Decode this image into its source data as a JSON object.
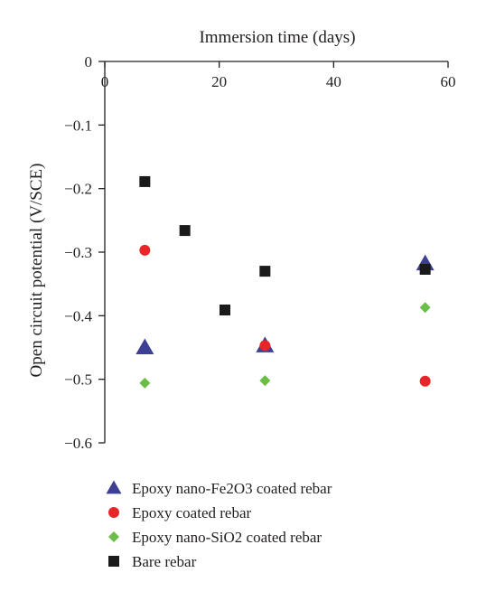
{
  "chart_data": {
    "type": "scatter",
    "xlabel": "Immersion time (days)",
    "ylabel": "Open circuit potential (V/SCE)",
    "xlim": [
      0,
      60
    ],
    "ylim": [
      -0.6,
      0
    ],
    "xticks": [
      "0",
      "20",
      "40",
      "60"
    ],
    "yticks": [
      "0",
      "−0.1",
      "−0.2",
      "−0.3",
      "−0.4",
      "−0.5",
      "−0.6"
    ],
    "x_axis_position": "top",
    "grid": false,
    "legend_position": "below",
    "series": [
      {
        "name": "Epoxy nano-Fe2O3 coated rebar",
        "marker": "triangle",
        "color": "#3d3f94",
        "points": [
          {
            "x": 7,
            "y": -0.45
          },
          {
            "x": 28,
            "y": -0.447
          },
          {
            "x": 56,
            "y": -0.318
          }
        ]
      },
      {
        "name": "Epoxy coated rebar",
        "marker": "circle",
        "color": "#e8262a",
        "points": [
          {
            "x": 7,
            "y": -0.297
          },
          {
            "x": 28,
            "y": -0.447
          },
          {
            "x": 56,
            "y": -0.503
          }
        ]
      },
      {
        "name": "Epoxy nano-SiO2 coated rebar",
        "marker": "diamond",
        "color": "#6abd45",
        "points": [
          {
            "x": 7,
            "y": -0.506
          },
          {
            "x": 28,
            "y": -0.502
          },
          {
            "x": 56,
            "y": -0.387
          }
        ]
      },
      {
        "name": "Bare rebar",
        "marker": "square",
        "color": "#1a1a1a",
        "points": [
          {
            "x": 7,
            "y": -0.189
          },
          {
            "x": 14,
            "y": -0.266
          },
          {
            "x": 21,
            "y": -0.391
          },
          {
            "x": 28,
            "y": -0.33
          },
          {
            "x": 56,
            "y": -0.327
          }
        ]
      }
    ]
  }
}
